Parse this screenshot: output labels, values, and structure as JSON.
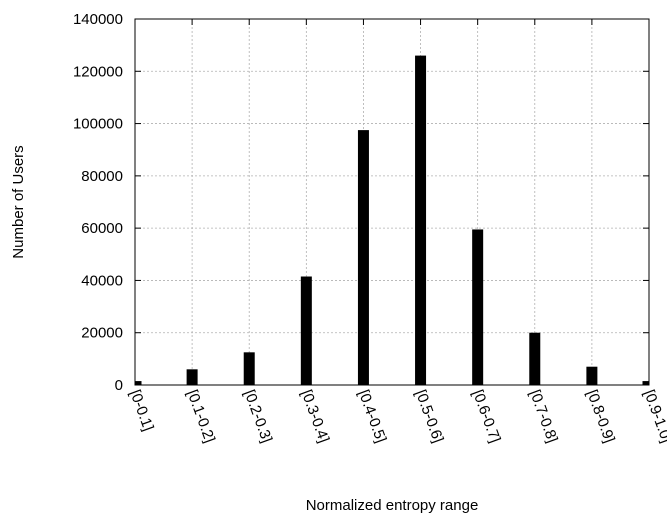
{
  "chart_data": {
    "type": "bar",
    "title": "",
    "xlabel": "Normalized entropy range",
    "ylabel": "Number of Users",
    "categories": [
      "[0-0.1]",
      "[0.1-0.2]",
      "[0.2-0.3]",
      "[0.3-0.4]",
      "[0.4-0.5]",
      "[0.5-0.6]",
      "[0.6-0.7]",
      "[0.7-0.8]",
      "[0.8-0.9]",
      "[0.9-1.0]"
    ],
    "values": [
      1500,
      6000,
      12500,
      41500,
      97500,
      126000,
      59500,
      20000,
      7000,
      1500
    ],
    "ylim": [
      0,
      140000
    ],
    "yticks": [
      "0",
      "20000",
      "40000",
      "60000",
      "80000",
      "100000",
      "120000",
      "140000"
    ],
    "grid": true,
    "bar_color": "#000000",
    "grid_color": "#b0b0b0"
  }
}
